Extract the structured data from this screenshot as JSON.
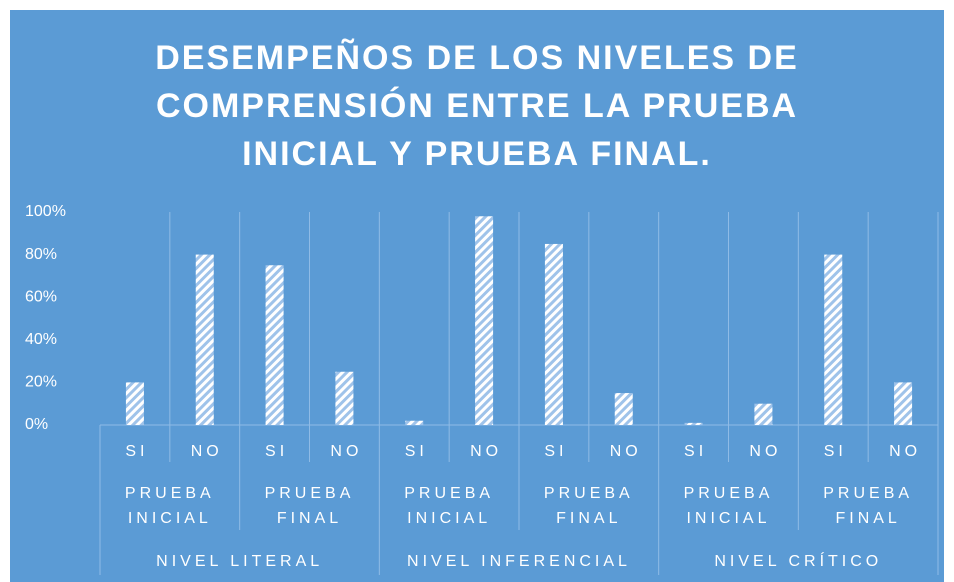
{
  "chart_data": {
    "type": "bar",
    "title": "DESEMPEÑOS DE LOS NIVELES  DE COMPRENSIÓN ENTRE LA PRUEBA INICIAL Y PRUEBA FINAL.",
    "categories": [
      "SI",
      "NO",
      "SI",
      "NO",
      "SI",
      "NO",
      "SI",
      "NO",
      "SI",
      "NO",
      "SI",
      "NO"
    ],
    "subgroups": [
      "PRUEBA INICIAL",
      "PRUEBA FINAL",
      "PRUEBA INICIAL",
      "PRUEBA FINAL",
      "PRUEBA INICIAL",
      "PRUEBA FINAL"
    ],
    "groups": [
      "NIVEL LITERAL",
      "NIVEL INFERENCIAL",
      "NIVEL CRÍTICO"
    ],
    "values": [
      20,
      80,
      75,
      25,
      2,
      98,
      85,
      15,
      1,
      10,
      80,
      20
    ],
    "color": "#b3d0ef",
    "ylim": [
      0,
      100
    ],
    "yticks": [
      {
        "value": 0,
        "label": "0%"
      },
      {
        "value": 20,
        "label": "20%"
      },
      {
        "value": 40,
        "label": "40%"
      },
      {
        "value": 60,
        "label": "60%"
      },
      {
        "value": 80,
        "label": "80%"
      },
      {
        "value": 100,
        "label": "100%"
      }
    ],
    "grid": false
  }
}
